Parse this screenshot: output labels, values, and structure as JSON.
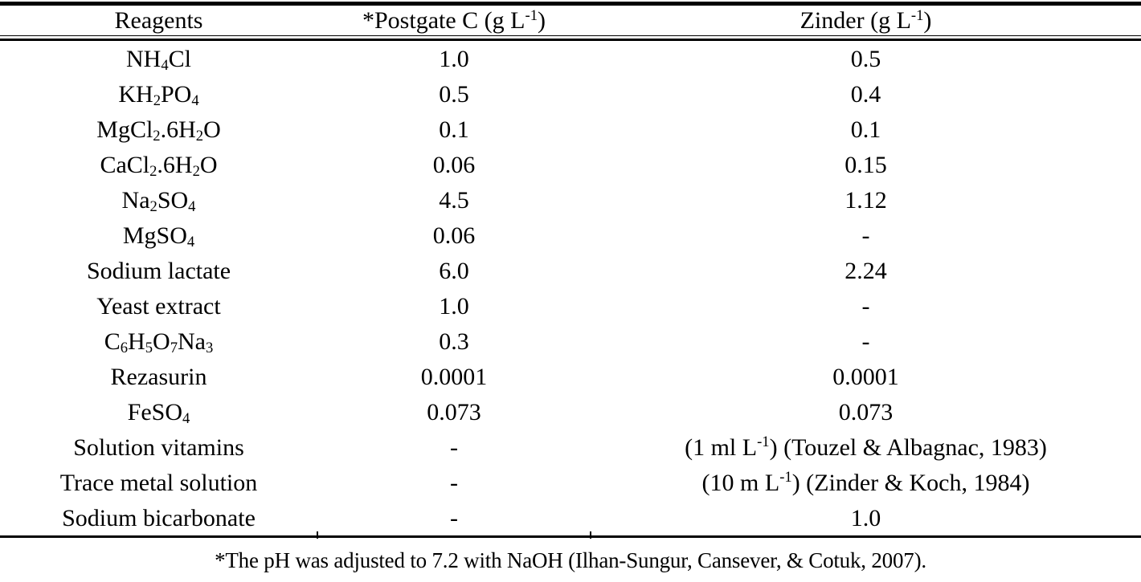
{
  "colors": {
    "text": "#000000",
    "background": "#ffffff",
    "rule": "#000000"
  },
  "table": {
    "header": {
      "reagents": [
        {
          "t": "Reagents"
        }
      ],
      "postgate": [
        {
          "t": "*Postgate C (g L"
        },
        {
          "t": "-1",
          "sup": true
        },
        {
          "t": ")"
        }
      ],
      "zinder": [
        {
          "t": "Zinder (g L"
        },
        {
          "t": "-1",
          "sup": true
        },
        {
          "t": ")"
        }
      ]
    },
    "rows": [
      {
        "reagent": [
          {
            "t": "NH"
          },
          {
            "t": "4",
            "sub": true
          },
          {
            "t": "Cl"
          }
        ],
        "postgate": [
          {
            "t": "1.0"
          }
        ],
        "zinder": [
          {
            "t": "0.5"
          }
        ]
      },
      {
        "reagent": [
          {
            "t": "KH"
          },
          {
            "t": "2",
            "sub": true
          },
          {
            "t": "PO"
          },
          {
            "t": "4",
            "sub": true
          }
        ],
        "postgate": [
          {
            "t": "0.5"
          }
        ],
        "zinder": [
          {
            "t": "0.4"
          }
        ]
      },
      {
        "reagent": [
          {
            "t": "MgCl"
          },
          {
            "t": "2",
            "sub": true
          },
          {
            "t": ".6H"
          },
          {
            "t": "2",
            "sub": true
          },
          {
            "t": "O"
          }
        ],
        "postgate": [
          {
            "t": "0.1"
          }
        ],
        "zinder": [
          {
            "t": "0.1"
          }
        ]
      },
      {
        "reagent": [
          {
            "t": "CaCl"
          },
          {
            "t": "2",
            "sub": true
          },
          {
            "t": ".6H"
          },
          {
            "t": "2",
            "sub": true
          },
          {
            "t": "O"
          }
        ],
        "postgate": [
          {
            "t": "0.06"
          }
        ],
        "zinder": [
          {
            "t": "0.15"
          }
        ]
      },
      {
        "reagent": [
          {
            "t": "Na"
          },
          {
            "t": "2",
            "sub": true
          },
          {
            "t": "SO"
          },
          {
            "t": "4",
            "sub": true
          }
        ],
        "postgate": [
          {
            "t": "4.5"
          }
        ],
        "zinder": [
          {
            "t": "1.12"
          }
        ]
      },
      {
        "reagent": [
          {
            "t": "MgSO"
          },
          {
            "t": "4",
            "sub": true
          }
        ],
        "postgate": [
          {
            "t": "0.06"
          }
        ],
        "zinder": [
          {
            "t": "-"
          }
        ]
      },
      {
        "reagent": [
          {
            "t": "Sodium lactate"
          }
        ],
        "postgate": [
          {
            "t": "6.0"
          }
        ],
        "zinder": [
          {
            "t": "2.24"
          }
        ]
      },
      {
        "reagent": [
          {
            "t": "Yeast extract"
          }
        ],
        "postgate": [
          {
            "t": "1.0"
          }
        ],
        "zinder": [
          {
            "t": "-"
          }
        ]
      },
      {
        "reagent": [
          {
            "t": "C"
          },
          {
            "t": "6",
            "sub": true
          },
          {
            "t": "H"
          },
          {
            "t": "5",
            "sub": true
          },
          {
            "t": "O"
          },
          {
            "t": "7",
            "sub": true
          },
          {
            "t": "Na"
          },
          {
            "t": "3",
            "sub": true
          }
        ],
        "postgate": [
          {
            "t": "0.3"
          }
        ],
        "zinder": [
          {
            "t": "-"
          }
        ]
      },
      {
        "reagent": [
          {
            "t": "Rezasurin"
          }
        ],
        "postgate": [
          {
            "t": "0.0001"
          }
        ],
        "zinder": [
          {
            "t": "0.0001"
          }
        ]
      },
      {
        "reagent": [
          {
            "t": "FeSO"
          },
          {
            "t": "4",
            "sub": true
          }
        ],
        "postgate": [
          {
            "t": "0.073"
          }
        ],
        "zinder": [
          {
            "t": "0.073"
          }
        ]
      },
      {
        "reagent": [
          {
            "t": "Solution vitamins"
          }
        ],
        "postgate": [
          {
            "t": "-"
          }
        ],
        "zinder": [
          {
            "t": "(1 ml L"
          },
          {
            "t": "-1",
            "sup": true
          },
          {
            "t": ") (Touzel & Albagnac, 1983)"
          }
        ]
      },
      {
        "reagent": [
          {
            "t": "Trace metal solution"
          }
        ],
        "postgate": [
          {
            "t": "-"
          }
        ],
        "zinder": [
          {
            "t": "(10 m L"
          },
          {
            "t": "-1",
            "sup": true
          },
          {
            "t": ") (Zinder & Koch, 1984)"
          }
        ]
      },
      {
        "reagent": [
          {
            "t": "Sodium bicarbonate"
          }
        ],
        "postgate": [
          {
            "t": "-"
          }
        ],
        "zinder": [
          {
            "t": "1.0"
          }
        ]
      }
    ]
  },
  "footnote": [
    {
      "t": "*The pH was adjusted to 7.2 with NaOH (Ilhan-Sungur, Cansever, & Cotuk, 2007)."
    }
  ]
}
